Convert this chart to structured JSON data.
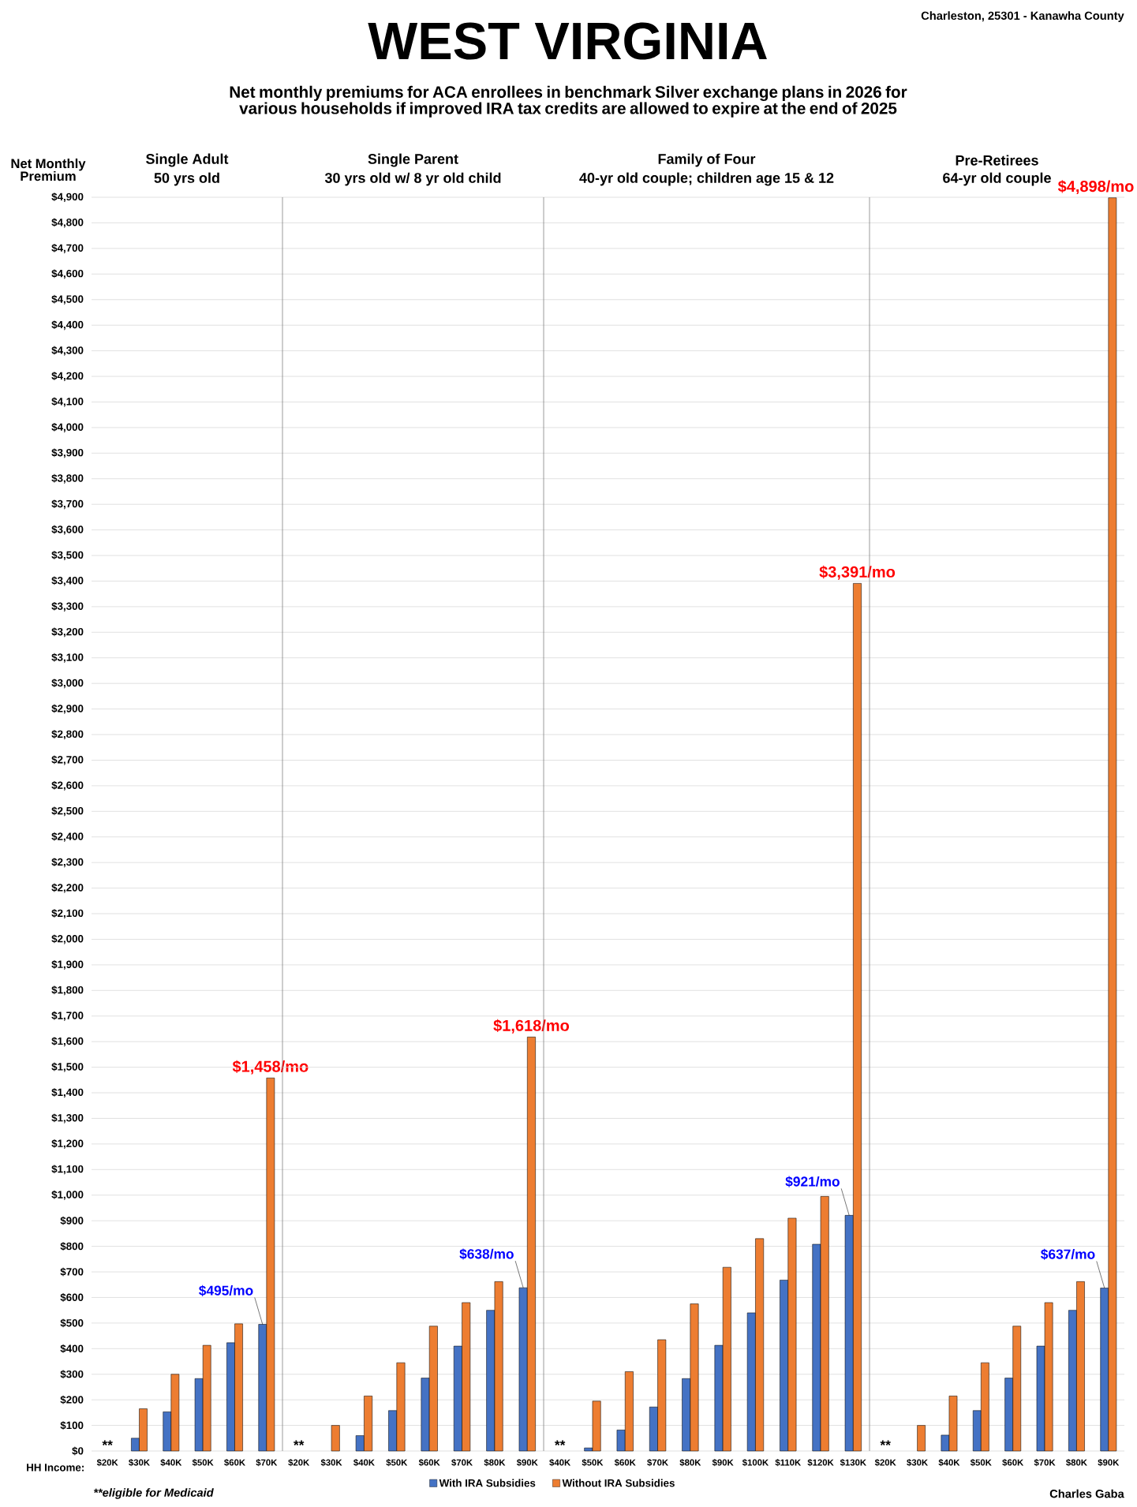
{
  "chart_data": [
    {
      "type": "other",
      "title": "WEST VIRGINIA",
      "subtitle": "Net monthly premiums for ACA enrollees in benchmark Silver exchange plans in 2026 for various households if improved IRA tax credits are allowed to expire at the end of 2025",
      "annotations": [
        "Charleston, 25301 - Kanawha County",
        "**eligible for Medicaid",
        "Charles Gaba"
      ]
    },
    {
      "type": "bar",
      "title": "Single Adult",
      "subtitle": "50 yrs old",
      "ylabel": "Net Monthly Premium",
      "xlabel": "HH Income:",
      "grid": "y",
      "ylim": [
        0,
        4900
      ],
      "yticks": [
        {
          "value": 0,
          "label": "$0"
        },
        {
          "value": 100,
          "label": "$100"
        },
        {
          "value": 200,
          "label": "$200"
        },
        {
          "value": 300,
          "label": "$300"
        },
        {
          "value": 400,
          "label": "$400"
        },
        {
          "value": 500,
          "label": "$500"
        },
        {
          "value": 600,
          "label": "$600"
        },
        {
          "value": 700,
          "label": "$700"
        },
        {
          "value": 800,
          "label": "$800"
        },
        {
          "value": 900,
          "label": "$900"
        },
        {
          "value": 1000,
          "label": "$1,000"
        },
        {
          "value": 1100,
          "label": "$1,100"
        },
        {
          "value": 1200,
          "label": "$1,200"
        },
        {
          "value": 1300,
          "label": "$1,300"
        },
        {
          "value": 1400,
          "label": "$1,400"
        },
        {
          "value": 1500,
          "label": "$1,500"
        },
        {
          "value": 1600,
          "label": "$1,600"
        },
        {
          "value": 1700,
          "label": "$1,700"
        },
        {
          "value": 1800,
          "label": "$1,800"
        },
        {
          "value": 1900,
          "label": "$1,900"
        },
        {
          "value": 2000,
          "label": "$2,000"
        },
        {
          "value": 2100,
          "label": "$2,100"
        },
        {
          "value": 2200,
          "label": "$2,200"
        },
        {
          "value": 2300,
          "label": "$2,300"
        },
        {
          "value": 2400,
          "label": "$2,400"
        },
        {
          "value": 2500,
          "label": "$2,500"
        },
        {
          "value": 2600,
          "label": "$2,600"
        },
        {
          "value": 2700,
          "label": "$2,700"
        },
        {
          "value": 2800,
          "label": "$2,800"
        },
        {
          "value": 2900,
          "label": "$2,900"
        },
        {
          "value": 3000,
          "label": "$3,000"
        },
        {
          "value": 3100,
          "label": "$3,100"
        },
        {
          "value": 3200,
          "label": "$3,200"
        },
        {
          "value": 3300,
          "label": "$3,300"
        },
        {
          "value": 3400,
          "label": "$3,400"
        },
        {
          "value": 3500,
          "label": "$3,500"
        },
        {
          "value": 3600,
          "label": "$3,600"
        },
        {
          "value": 3700,
          "label": "$3,700"
        },
        {
          "value": 3800,
          "label": "$3,800"
        },
        {
          "value": 3900,
          "label": "$3,900"
        },
        {
          "value": 4000,
          "label": "$4,000"
        },
        {
          "value": 4100,
          "label": "$4,100"
        },
        {
          "value": 4200,
          "label": "$4,200"
        },
        {
          "value": 4300,
          "label": "$4,300"
        },
        {
          "value": 4400,
          "label": "$4,400"
        },
        {
          "value": 4500,
          "label": "$4,500"
        },
        {
          "value": 4600,
          "label": "$4,600"
        },
        {
          "value": 4700,
          "label": "$4,700"
        },
        {
          "value": 4800,
          "label": "$4,800"
        },
        {
          "value": 4900,
          "label": "$4,900"
        }
      ],
      "categories": [
        "$20K",
        "$30K",
        "$40K",
        "$50K",
        "$60K",
        "$70K"
      ],
      "series": [
        {
          "color": "#4472c4",
          "values": [
            null,
            50,
            153,
            283,
            423,
            495
          ],
          "value_labels": [
            "**",
            null,
            null,
            null,
            null,
            "$495/mo"
          ]
        },
        {
          "color": "#ed7d31",
          "values": [
            null,
            165,
            300,
            413,
            497,
            1458
          ],
          "value_labels": [
            null,
            null,
            null,
            null,
            null,
            "$1,458/mo"
          ]
        }
      ]
    },
    {
      "type": "bar",
      "title": "Single Parent",
      "subtitle": "30 yrs old w/ 8 yr old child",
      "grid": "y",
      "tick_labels": "x",
      "legend": "bottom",
      "ylim": [
        0,
        4900
      ],
      "yticks": [
        0,
        100,
        200,
        300,
        400,
        500,
        600,
        700,
        800,
        900,
        1000,
        1100,
        1200,
        1300,
        1400,
        1500,
        1600,
        1700,
        1800,
        1900,
        2000,
        2100,
        2200,
        2300,
        2400,
        2500,
        2600,
        2700,
        2800,
        2900,
        3000,
        3100,
        3200,
        3300,
        3400,
        3500,
        3600,
        3700,
        3800,
        3900,
        4000,
        4100,
        4200,
        4300,
        4400,
        4500,
        4600,
        4700,
        4800,
        4900
      ],
      "categories": [
        "$20K",
        "$30K",
        "$40K",
        "$50K",
        "$60K",
        "$70K",
        "$80K",
        "$90K"
      ],
      "series": [
        {
          "name": "With IRA Subsidies",
          "color": "#4472c4",
          "values": [
            null,
            null,
            60,
            158,
            285,
            410,
            550,
            638
          ],
          "value_labels": [
            "**",
            null,
            null,
            null,
            null,
            null,
            null,
            "$638/mo"
          ]
        },
        {
          "name": "Without IRA Subsidies",
          "color": "#ed7d31",
          "values": [
            null,
            100,
            215,
            345,
            488,
            580,
            662,
            1618
          ],
          "value_labels": [
            null,
            null,
            null,
            null,
            null,
            null,
            null,
            "$1,618/mo"
          ]
        }
      ]
    },
    {
      "type": "bar",
      "title": "Family of Four",
      "subtitle": "40-yr old couple; children age 15 & 12",
      "grid": "y",
      "tick_labels": "x",
      "ylim": [
        0,
        4900
      ],
      "yticks": [
        0,
        100,
        200,
        300,
        400,
        500,
        600,
        700,
        800,
        900,
        1000,
        1100,
        1200,
        1300,
        1400,
        1500,
        1600,
        1700,
        1800,
        1900,
        2000,
        2100,
        2200,
        2300,
        2400,
        2500,
        2600,
        2700,
        2800,
        2900,
        3000,
        3100,
        3200,
        3300,
        3400,
        3500,
        3600,
        3700,
        3800,
        3900,
        4000,
        4100,
        4200,
        4300,
        4400,
        4500,
        4600,
        4700,
        4800,
        4900
      ],
      "categories": [
        "$40K",
        "$50K",
        "$60K",
        "$70K",
        "$80K",
        "$90K",
        "$100K",
        "$110K",
        "$120K",
        "$130K"
      ],
      "series": [
        {
          "color": "#4472c4",
          "values": [
            null,
            12,
            82,
            172,
            283,
            413,
            540,
            668,
            808,
            921
          ],
          "value_labels": [
            "**",
            null,
            null,
            null,
            null,
            null,
            null,
            null,
            null,
            "$921/mo"
          ]
        },
        {
          "color": "#ed7d31",
          "values": [
            null,
            195,
            310,
            435,
            575,
            718,
            830,
            910,
            995,
            3391
          ],
          "value_labels": [
            null,
            null,
            null,
            null,
            null,
            null,
            null,
            null,
            null,
            "$3,391/mo"
          ]
        }
      ]
    },
    {
      "type": "bar",
      "title": "Pre-Retirees",
      "subtitle": "64-yr old couple",
      "grid": "y",
      "tick_labels": "x",
      "ylim": [
        0,
        4900
      ],
      "yticks": [
        0,
        100,
        200,
        300,
        400,
        500,
        600,
        700,
        800,
        900,
        1000,
        1100,
        1200,
        1300,
        1400,
        1500,
        1600,
        1700,
        1800,
        1900,
        2000,
        2100,
        2200,
        2300,
        2400,
        2500,
        2600,
        2700,
        2800,
        2900,
        3000,
        3100,
        3200,
        3300,
        3400,
        3500,
        3600,
        3700,
        3800,
        3900,
        4000,
        4100,
        4200,
        4300,
        4400,
        4500,
        4600,
        4700,
        4800,
        4900
      ],
      "categories": [
        "$20K",
        "$30K",
        "$40K",
        "$50K",
        "$60K",
        "$70K",
        "$80K",
        "$90K"
      ],
      "series": [
        {
          "color": "#4472c4",
          "values": [
            null,
            null,
            62,
            158,
            285,
            410,
            550,
            637
          ],
          "value_labels": [
            "**",
            null,
            null,
            null,
            null,
            null,
            null,
            "$637/mo"
          ]
        },
        {
          "color": "#ed7d31",
          "values": [
            null,
            100,
            215,
            345,
            488,
            580,
            662,
            4898
          ],
          "value_labels": [
            null,
            null,
            null,
            null,
            null,
            null,
            null,
            "$4,898/mo"
          ]
        }
      ]
    }
  ]
}
